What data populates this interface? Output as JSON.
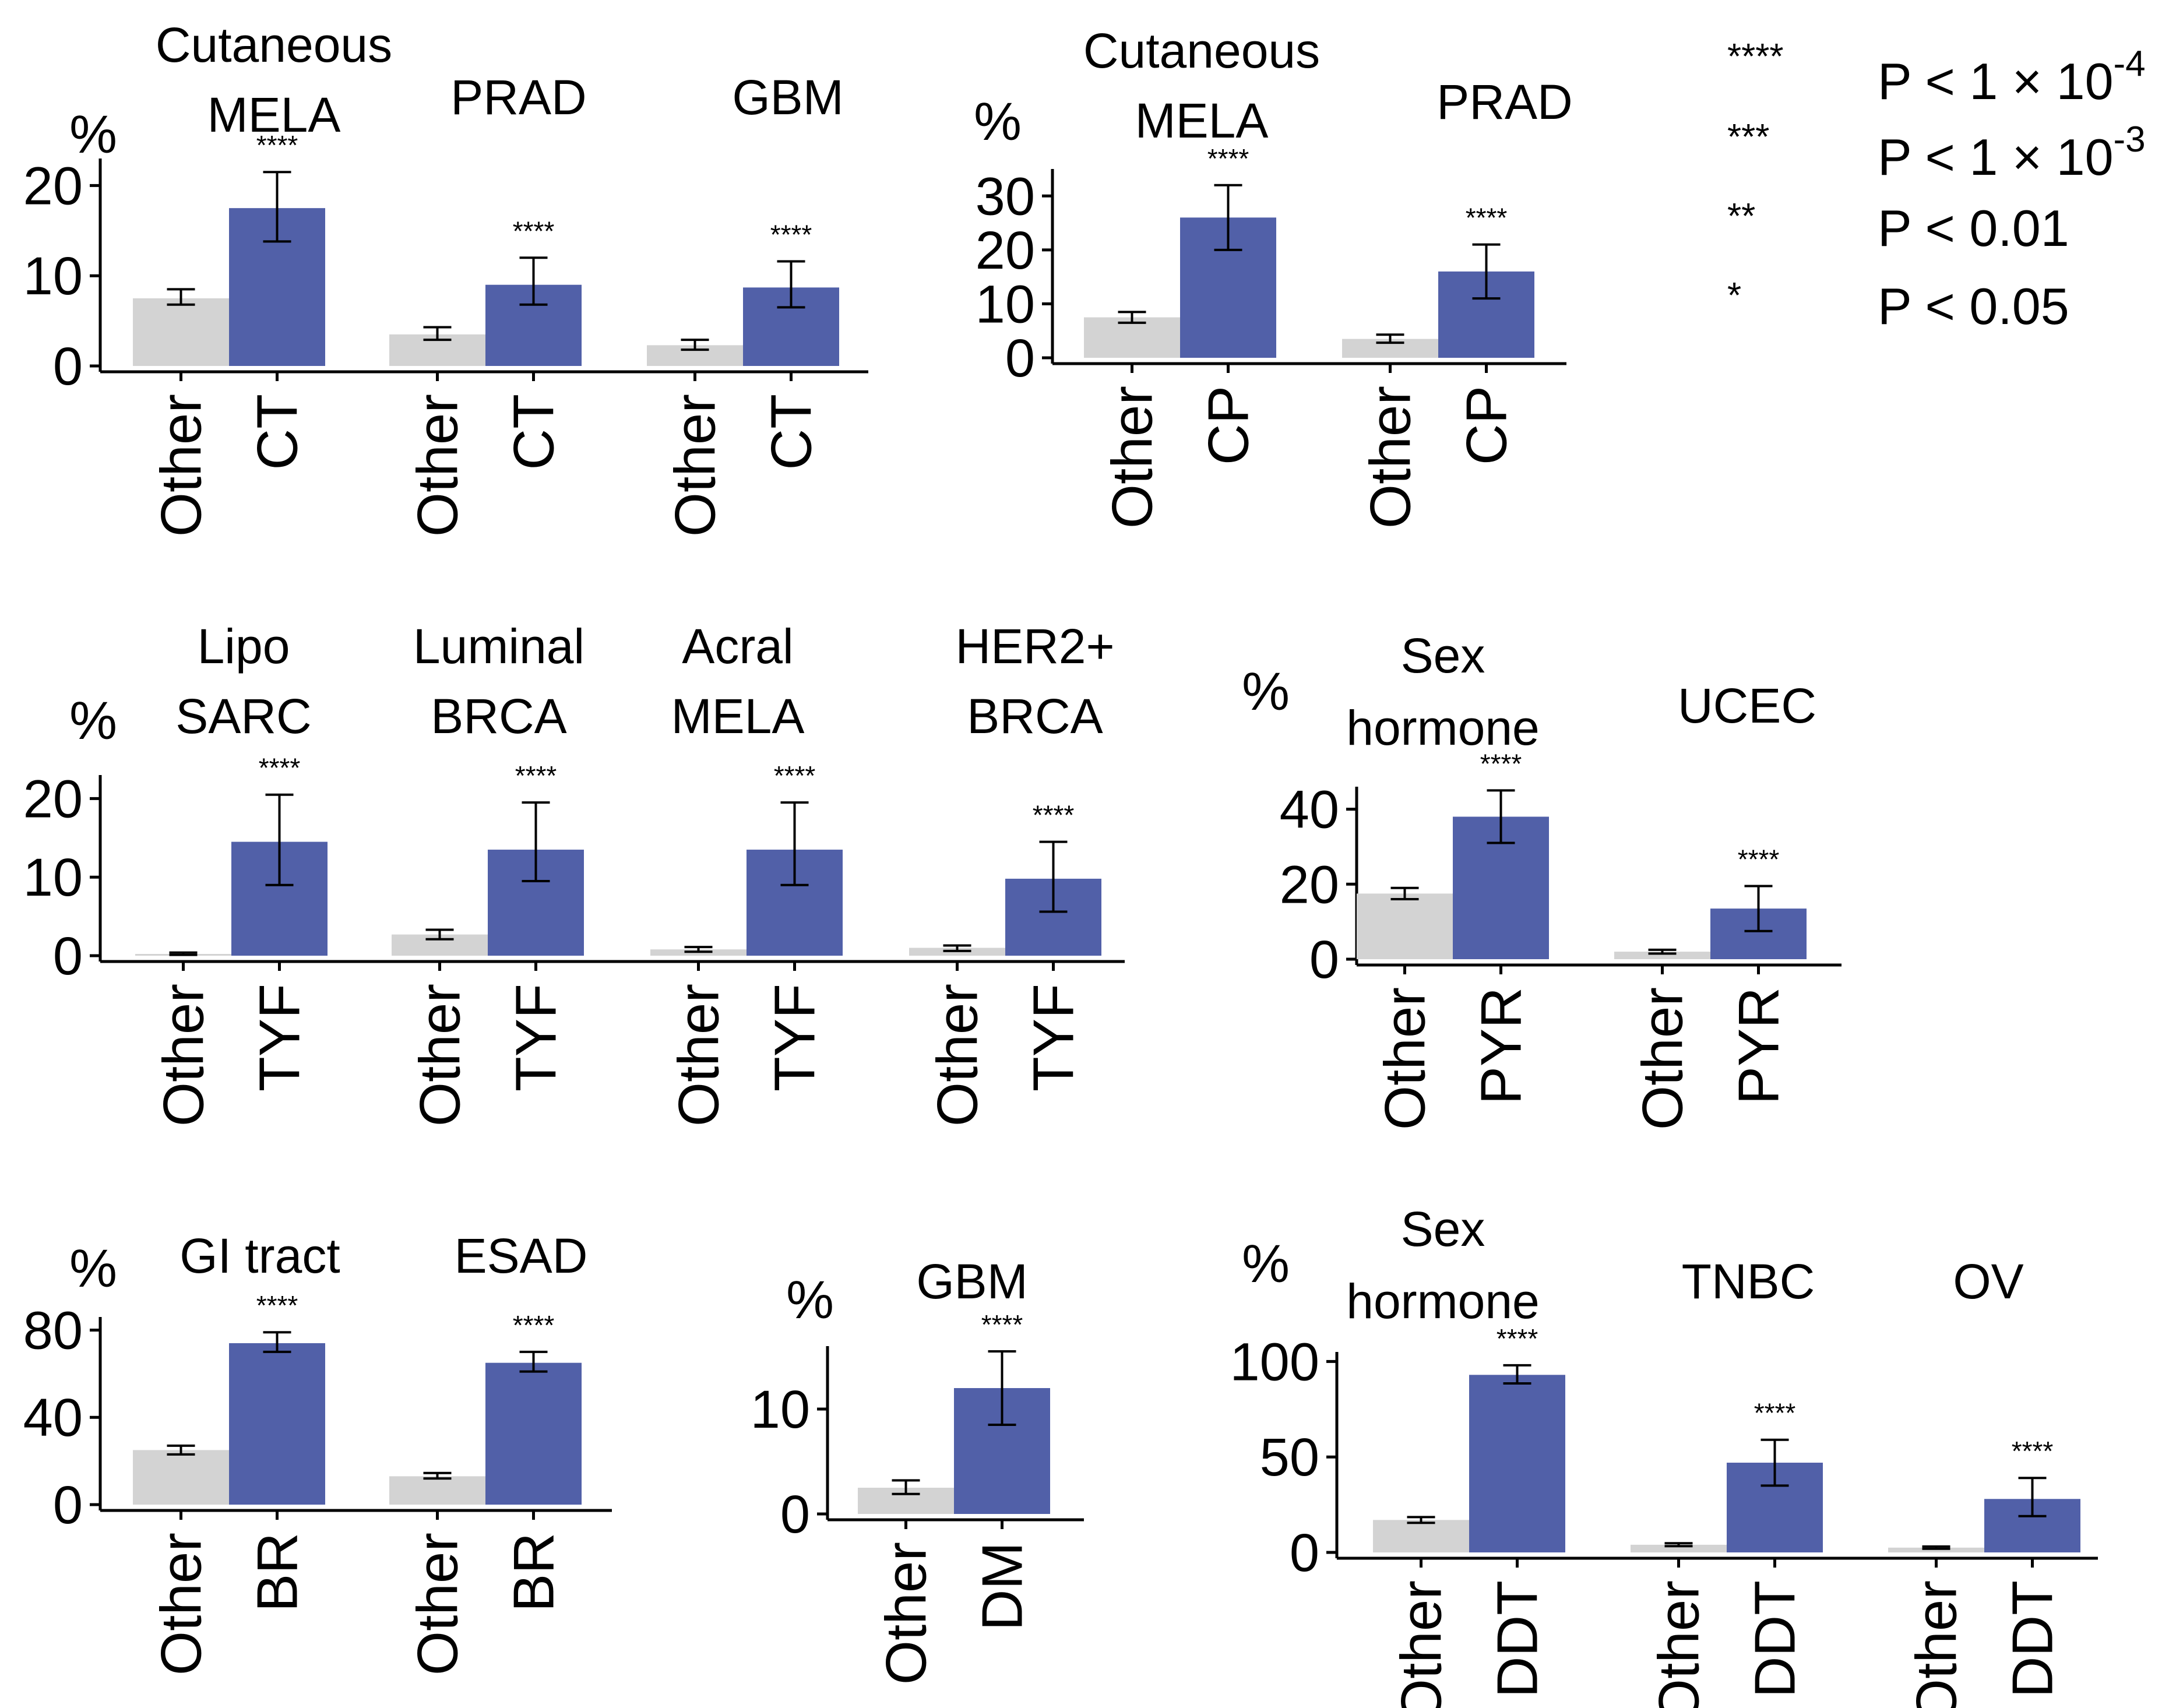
{
  "colors": {
    "other": "#d3d3d3",
    "treated": "#5160a8",
    "axis": "#000000",
    "errorbar": "#000000"
  },
  "legend": [
    {
      "stars": "****",
      "text": "P < 1 × 10",
      "sup": "-4"
    },
    {
      "stars": "***",
      "text": "P < 1 × 10",
      "sup": "-3"
    },
    {
      "stars": "**",
      "text": "P < 0.01",
      "sup": ""
    },
    {
      "stars": "*",
      "text": "P < 0.05",
      "sup": ""
    }
  ],
  "chart_data": [
    {
      "type": "bar",
      "ylabel": "%",
      "ylim": [
        0,
        23
      ],
      "yticks": [
        0,
        10,
        20
      ],
      "categories": [
        "Other",
        "CT"
      ],
      "groups": [
        {
          "title": [
            "Cutaneous",
            "MELA"
          ],
          "values": [
            7.5,
            17.5
          ],
          "err_low": [
            6.8,
            13.8
          ],
          "err_high": [
            8.5,
            21.5
          ],
          "sig": "****"
        },
        {
          "title": [
            "PRAD"
          ],
          "values": [
            3.5,
            9
          ],
          "err_low": [
            2.9,
            6.8
          ],
          "err_high": [
            4.3,
            12
          ],
          "sig": "****"
        },
        {
          "title": [
            "GBM"
          ],
          "values": [
            2.3,
            8.7
          ],
          "err_low": [
            1.8,
            6.5
          ],
          "err_high": [
            2.9,
            11.6
          ],
          "sig": "****"
        }
      ]
    },
    {
      "type": "bar",
      "ylabel": "%",
      "ylim": [
        0,
        35
      ],
      "yticks": [
        0,
        10,
        20,
        30
      ],
      "categories": [
        "Other",
        "CP"
      ],
      "groups": [
        {
          "title": [
            "Cutaneous",
            "MELA"
          ],
          "values": [
            7.5,
            26
          ],
          "err_low": [
            6.5,
            20
          ],
          "err_high": [
            8.5,
            32
          ],
          "sig": "****"
        },
        {
          "title": [
            "PRAD"
          ],
          "values": [
            3.5,
            16
          ],
          "err_low": [
            2.8,
            11
          ],
          "err_high": [
            4.3,
            21
          ],
          "sig": "****"
        }
      ]
    },
    {
      "type": "bar",
      "ylabel": "%",
      "ylim": [
        0,
        23
      ],
      "yticks": [
        0,
        10,
        20
      ],
      "categories": [
        "Other",
        "TYF"
      ],
      "groups": [
        {
          "title": [
            "Lipo",
            "SARC"
          ],
          "values": [
            0.2,
            14.5
          ],
          "err_low": [
            0.1,
            9
          ],
          "err_high": [
            0.4,
            20.5
          ],
          "sig": "****"
        },
        {
          "title": [
            "Luminal",
            "BRCA"
          ],
          "values": [
            2.7,
            13.5
          ],
          "err_low": [
            2.1,
            9.5
          ],
          "err_high": [
            3.3,
            19.5
          ],
          "sig": "****"
        },
        {
          "title": [
            "Acral",
            "MELA"
          ],
          "values": [
            0.8,
            13.5
          ],
          "err_low": [
            0.5,
            9
          ],
          "err_high": [
            1.1,
            19.5
          ],
          "sig": "****"
        },
        {
          "title": [
            "HER2+",
            "BRCA"
          ],
          "values": [
            1,
            9.8
          ],
          "err_low": [
            0.6,
            5.6
          ],
          "err_high": [
            1.3,
            14.5
          ],
          "sig": "****"
        }
      ]
    },
    {
      "type": "bar",
      "ylabel": "%",
      "ylim": [
        0,
        46
      ],
      "yticks": [
        0,
        20,
        40
      ],
      "categories": [
        "Other",
        "PYR"
      ],
      "groups": [
        {
          "title": [
            "Sex",
            "hormone"
          ],
          "values": [
            17.5,
            38
          ],
          "err_low": [
            16,
            31
          ],
          "err_high": [
            19,
            45
          ],
          "sig": "****"
        },
        {
          "title": [
            "UCEC"
          ],
          "values": [
            2,
            13.5
          ],
          "err_low": [
            1.5,
            7.5
          ],
          "err_high": [
            2.5,
            19.5
          ],
          "sig": "****"
        }
      ]
    },
    {
      "type": "bar",
      "ylabel": "%",
      "ylim": [
        0,
        86
      ],
      "yticks": [
        0,
        40,
        80
      ],
      "categories": [
        "Other",
        "BR"
      ],
      "groups": [
        {
          "title": [
            "GI tract"
          ],
          "values": [
            25,
            74
          ],
          "err_low": [
            23,
            70
          ],
          "err_high": [
            27,
            79
          ],
          "sig": "****"
        },
        {
          "title": [
            "ESAD"
          ],
          "values": [
            13,
            65
          ],
          "err_low": [
            12,
            61
          ],
          "err_high": [
            14.5,
            70
          ],
          "sig": "****"
        }
      ]
    },
    {
      "type": "bar",
      "ylabel": "%",
      "ylim": [
        0,
        16
      ],
      "yticks": [
        0,
        10
      ],
      "categories": [
        "Other",
        "DM"
      ],
      "groups": [
        {
          "title": [
            "GBM"
          ],
          "values": [
            2.5,
            12
          ],
          "err_low": [
            1.9,
            8.5
          ],
          "err_high": [
            3.2,
            15.5
          ],
          "sig": "****"
        }
      ]
    },
    {
      "type": "bar",
      "ylabel": "%",
      "ylim": [
        0,
        105
      ],
      "yticks": [
        0,
        50,
        100
      ],
      "categories": [
        "Other",
        "DDT"
      ],
      "groups": [
        {
          "title": [
            "Sex",
            "hormone"
          ],
          "values": [
            17,
            93
          ],
          "err_low": [
            15.5,
            88.5
          ],
          "err_high": [
            18.5,
            98
          ],
          "sig": "****"
        },
        {
          "title": [
            "TNBC"
          ],
          "values": [
            4,
            47
          ],
          "err_low": [
            3.3,
            35
          ],
          "err_high": [
            4.8,
            59
          ],
          "sig": "****"
        },
        {
          "title": [
            "OV"
          ],
          "values": [
            2.5,
            28
          ],
          "err_low": [
            1.9,
            19
          ],
          "err_high": [
            3.1,
            39
          ],
          "sig": "****"
        }
      ]
    }
  ]
}
